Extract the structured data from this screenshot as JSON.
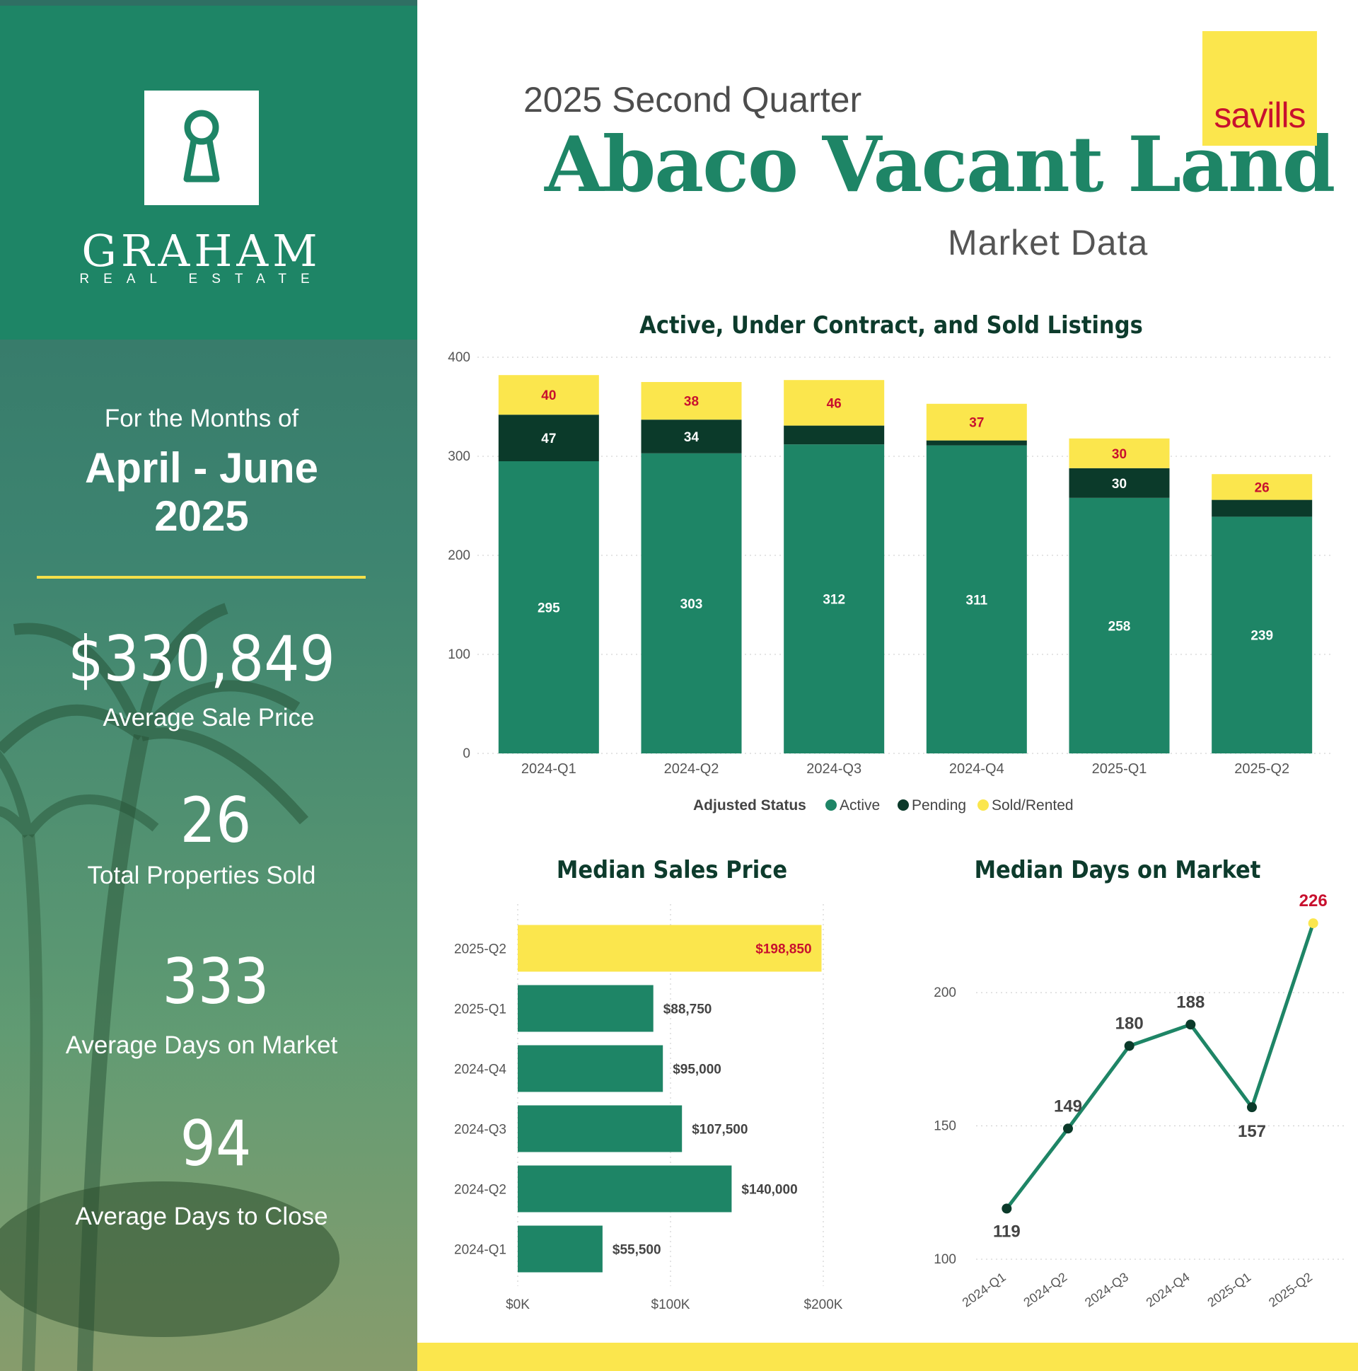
{
  "sidebar": {
    "brand_name": "GRAHAM",
    "brand_sub": "REAL ESTATE",
    "months_label": "For the Months of",
    "months_line1": "April - June",
    "months_line2": "2025",
    "stats": [
      {
        "value": "$330,849",
        "label": "Average Sale Price"
      },
      {
        "value": "26",
        "label": "Total Properties Sold"
      },
      {
        "value": "333",
        "label": "Average Days on Market"
      },
      {
        "value": "94",
        "label": "Average Days to Close"
      }
    ],
    "logo_icon": "keyhole-person-icon"
  },
  "header": {
    "subtitle": "2025 Second Quarter",
    "title": "Abaco Vacant Land",
    "market_label": "Market Data",
    "partner_logo": "savills"
  },
  "colors": {
    "active": "#1e8566",
    "pending": "#0b3a2a",
    "sold": "#fbe64d",
    "highlight_label": "#c8102e"
  },
  "chart_data": [
    {
      "type": "bar",
      "stacked": true,
      "title": "Active, Under Contract, and Sold Listings",
      "categories": [
        "2024-Q1",
        "2024-Q2",
        "2024-Q3",
        "2024-Q4",
        "2025-Q1",
        "2025-Q2"
      ],
      "series": [
        {
          "name": "Active",
          "values": [
            295,
            303,
            312,
            311,
            258,
            239
          ],
          "labels": [
            "295",
            "303",
            "312",
            "311",
            "258",
            "239"
          ]
        },
        {
          "name": "Pending",
          "values": [
            47,
            34,
            19,
            5,
            30,
            17
          ],
          "labels": [
            "47",
            "34",
            "",
            "",
            "30",
            ""
          ]
        },
        {
          "name": "Sold/Rented",
          "values": [
            40,
            38,
            46,
            37,
            30,
            26
          ],
          "labels": [
            "40",
            "38",
            "46",
            "37",
            "30",
            "26"
          ]
        }
      ],
      "ylim": [
        0,
        400
      ],
      "yticks": [
        "0",
        "100",
        "200",
        "300",
        "400"
      ],
      "legend_title": "Adjusted Status",
      "legend_position": "bottom",
      "grid": true
    },
    {
      "type": "bar",
      "orientation": "horizontal",
      "title": "Median Sales Price",
      "categories": [
        "2025-Q2",
        "2025-Q1",
        "2024-Q4",
        "2024-Q3",
        "2024-Q2",
        "2024-Q1"
      ],
      "values": [
        198850,
        88750,
        95000,
        107500,
        140000,
        55500
      ],
      "labels": [
        "$198,850",
        "$88,750",
        "$95,000",
        "$107,500",
        "$140,000",
        "$55,500"
      ],
      "highlight_index": 0,
      "xlim": [
        0,
        200000
      ],
      "xticks": [
        "$0K",
        "$100K",
        "$200K"
      ],
      "grid": true
    },
    {
      "type": "line",
      "title": "Median Days on Market",
      "categories": [
        "2024-Q1",
        "2024-Q2",
        "2024-Q3",
        "2024-Q4",
        "2025-Q1",
        "2025-Q2"
      ],
      "values": [
        119,
        149,
        180,
        188,
        157,
        226
      ],
      "labels": [
        "119",
        "149",
        "180",
        "188",
        "157",
        "226"
      ],
      "highlight_index": 5,
      "ylim": [
        100,
        230
      ],
      "yticks": [
        "100",
        "150",
        "200"
      ],
      "grid": true
    }
  ]
}
